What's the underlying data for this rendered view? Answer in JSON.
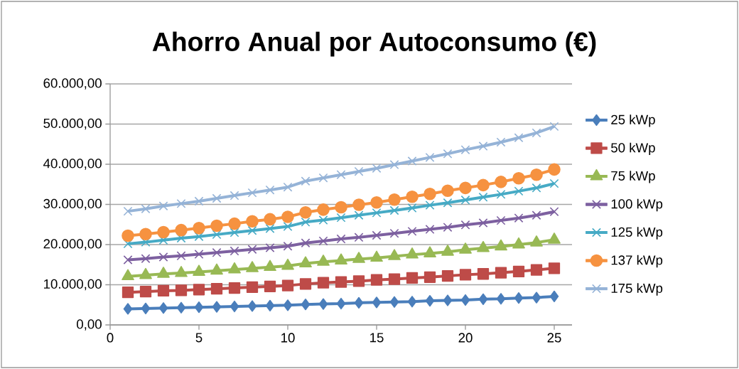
{
  "chart_data": {
    "type": "line",
    "title": "Ahorro Anual por Autoconsumo (€)",
    "x": [
      1,
      2,
      3,
      4,
      5,
      6,
      7,
      8,
      9,
      10,
      11,
      12,
      13,
      14,
      15,
      16,
      17,
      18,
      19,
      20,
      21,
      22,
      23,
      24,
      25
    ],
    "xlim": [
      0,
      26
    ],
    "xticks": [
      0,
      5,
      10,
      15,
      20,
      25
    ],
    "ylim": [
      0,
      60000
    ],
    "yticks": [
      {
        "value": 0,
        "label": "0,00"
      },
      {
        "value": 10000,
        "label": "10.000,00"
      },
      {
        "value": 20000,
        "label": "20.000,00"
      },
      {
        "value": 30000,
        "label": "30.000,00"
      },
      {
        "value": 40000,
        "label": "40.000,00"
      },
      {
        "value": 50000,
        "label": "50.000,00"
      },
      {
        "value": 60000,
        "label": "60.000,00"
      }
    ],
    "grid": "y",
    "legend": "right",
    "series": [
      {
        "name": "25 kWp",
        "color": "#4a7ebb",
        "marker": "diamond",
        "values": [
          4000,
          4100,
          4200,
          4300,
          4400,
          4500,
          4600,
          4700,
          4800,
          4900,
          5100,
          5200,
          5300,
          5500,
          5600,
          5700,
          5800,
          6000,
          6100,
          6200,
          6400,
          6500,
          6700,
          6800,
          7100
        ]
      },
      {
        "name": "50 kWp",
        "color": "#be4b48",
        "marker": "square",
        "values": [
          8100,
          8300,
          8500,
          8600,
          8800,
          9000,
          9200,
          9400,
          9600,
          9800,
          10200,
          10500,
          10700,
          10900,
          11200,
          11400,
          11700,
          11900,
          12200,
          12500,
          12700,
          13000,
          13300,
          13700,
          14100
        ]
      },
      {
        "name": "75 kWp",
        "color": "#98b954",
        "marker": "triangle",
        "values": [
          12100,
          12400,
          12700,
          12900,
          13200,
          13500,
          13800,
          14100,
          14400,
          14700,
          15300,
          15700,
          16000,
          16400,
          16700,
          17100,
          17500,
          17800,
          18200,
          18700,
          19100,
          19500,
          20000,
          20500,
          21200
        ]
      },
      {
        "name": "100 kWp",
        "color": "#7d60a0",
        "marker": "cross",
        "values": [
          16200,
          16500,
          16900,
          17200,
          17600,
          18000,
          18400,
          18800,
          19200,
          19600,
          20400,
          20900,
          21400,
          21800,
          22300,
          22800,
          23300,
          23800,
          24300,
          24900,
          25400,
          26000,
          26600,
          27300,
          28200
        ]
      },
      {
        "name": "125 kWp",
        "color": "#46aac5",
        "marker": "cross",
        "values": [
          20200,
          20600,
          21100,
          21600,
          22000,
          22500,
          23000,
          23500,
          24000,
          24500,
          25600,
          26100,
          26700,
          27300,
          27900,
          28500,
          29100,
          29800,
          30400,
          31100,
          31800,
          32500,
          33300,
          34100,
          35200
        ]
      },
      {
        "name": "137 kWp",
        "color": "#f69240",
        "marker": "circle",
        "values": [
          22200,
          22600,
          23100,
          23600,
          24100,
          24700,
          25200,
          25800,
          26300,
          26900,
          28000,
          28700,
          29300,
          29900,
          30500,
          31200,
          31900,
          32600,
          33400,
          34100,
          34800,
          35600,
          36500,
          37400,
          38700
        ]
      },
      {
        "name": "175 kWp",
        "color": "#95b3d7",
        "marker": "cross",
        "values": [
          28300,
          28900,
          29600,
          30200,
          30800,
          31500,
          32200,
          32900,
          33600,
          34300,
          35800,
          36600,
          37400,
          38200,
          39000,
          39900,
          40800,
          41700,
          42600,
          43600,
          44500,
          45500,
          46600,
          47800,
          49400
        ]
      }
    ]
  }
}
